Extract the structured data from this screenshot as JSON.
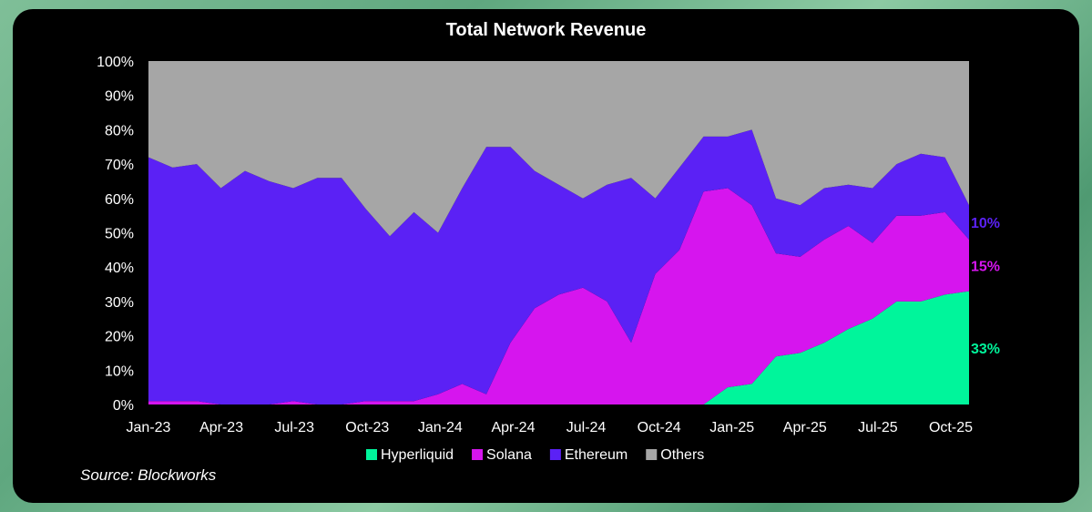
{
  "chart_data": {
    "type": "area",
    "stacked": true,
    "percent": true,
    "title": "Total Network Revenue",
    "source": "Source: Blockworks",
    "x_ticks": [
      "Jan-23",
      "Apr-23",
      "Jul-23",
      "Oct-23",
      "Jan-24",
      "Apr-24",
      "Jul-24",
      "Oct-24",
      "Jan-25",
      "Apr-25",
      "Jul-25",
      "Oct-25"
    ],
    "y_ticks": [
      "0%",
      "10%",
      "20%",
      "30%",
      "40%",
      "50%",
      "60%",
      "70%",
      "80%",
      "90%",
      "100%"
    ],
    "ylim": [
      0,
      100
    ],
    "legend_position": "bottom",
    "x": [
      "Jan-23",
      "Feb-23",
      "Mar-23",
      "Apr-23",
      "May-23",
      "Jun-23",
      "Jul-23",
      "Aug-23",
      "Sep-23",
      "Oct-23",
      "Nov-23",
      "Dec-23",
      "Jan-24",
      "Feb-24",
      "Mar-24",
      "Apr-24",
      "May-24",
      "Jun-24",
      "Jul-24",
      "Aug-24",
      "Sep-24",
      "Oct-24",
      "Nov-24",
      "Dec-24",
      "Jan-25",
      "Feb-25",
      "Mar-25",
      "Apr-25",
      "May-25",
      "Jun-25",
      "Jul-25",
      "Aug-25",
      "Sep-25",
      "Oct-25",
      "Nov-25"
    ],
    "series": [
      {
        "name": "Hyperliquid",
        "color": "#00f59b",
        "values": [
          0,
          0,
          0,
          0,
          0,
          0,
          0,
          0,
          0,
          0,
          0,
          0,
          0,
          0,
          0,
          0,
          0,
          0,
          0,
          0,
          0,
          0,
          0,
          0,
          5,
          6,
          14,
          15,
          18,
          22,
          25,
          30,
          30,
          32,
          33
        ]
      },
      {
        "name": "Solana",
        "color": "#d615ee",
        "values": [
          1,
          1,
          1,
          0,
          0,
          0,
          1,
          0,
          0,
          1,
          1,
          1,
          3,
          6,
          3,
          18,
          28,
          32,
          34,
          30,
          18,
          38,
          45,
          62,
          58,
          52,
          30,
          28,
          30,
          30,
          22,
          25,
          25,
          24,
          15
        ]
      },
      {
        "name": "Ethereum",
        "color": "#5b21f5",
        "values": [
          71,
          68,
          69,
          63,
          68,
          65,
          62,
          66,
          66,
          56,
          48,
          55,
          47,
          57,
          72,
          57,
          40,
          32,
          26,
          34,
          48,
          22,
          24,
          16,
          15,
          22,
          16,
          15,
          15,
          12,
          16,
          15,
          18,
          16,
          10
        ]
      },
      {
        "name": "Others",
        "color": "#a6a6a6",
        "values": [
          28,
          31,
          30,
          37,
          32,
          35,
          37,
          34,
          34,
          43,
          51,
          44,
          50,
          37,
          25,
          25,
          32,
          36,
          40,
          36,
          34,
          40,
          31,
          22,
          22,
          20,
          40,
          42,
          37,
          36,
          37,
          30,
          27,
          28,
          42
        ]
      }
    ],
    "end_labels": [
      {
        "series": "Ethereum",
        "text": "10%",
        "color": "#5b21f5"
      },
      {
        "series": "Solana",
        "text": "15%",
        "color": "#d615ee"
      },
      {
        "series": "Hyperliquid",
        "text": "33%",
        "color": "#00f59b"
      }
    ]
  }
}
